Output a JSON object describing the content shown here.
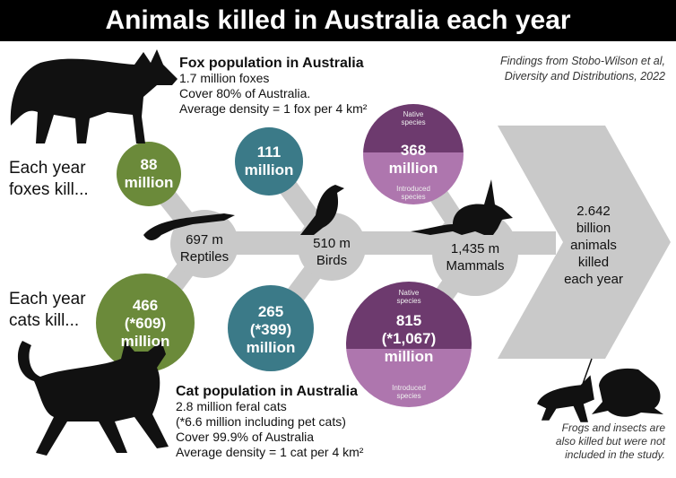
{
  "title": "Animals killed in Australia each year",
  "source": [
    "Findings from Stobo-Wilson et al,",
    "Diversity and Distributions, 2022"
  ],
  "fox": {
    "heading": "Fox population in Australia",
    "lines": [
      "1.7 million foxes",
      "Cover 80% of Australia.",
      "Average density = 1 fox per 4 km²"
    ],
    "kill_label": [
      "Each year",
      "foxes kill..."
    ]
  },
  "cat": {
    "heading": "Cat population in Australia",
    "lines": [
      "2.8 million feral cats",
      "(*6.6 million including pet cats)",
      "Cover 99.9% of Australia",
      "Average density = 1 cat per 4 km²"
    ],
    "kill_label": [
      "Each year",
      "cats kill..."
    ]
  },
  "groups": [
    {
      "total": "697 m",
      "name": "Reptiles",
      "fox": [
        "88",
        "million"
      ],
      "cat": [
        "466",
        "(*609)",
        "million"
      ],
      "color": "#6b8a3a"
    },
    {
      "total": "510 m",
      "name": "Birds",
      "fox": [
        "111",
        "million"
      ],
      "cat": [
        "265",
        "(*399)",
        "million"
      ],
      "color": "#3b7a88"
    },
    {
      "total": "1,435 m",
      "name": "Mammals",
      "fox": [
        "368",
        "million"
      ],
      "cat": [
        "815",
        "(*1,067)",
        "million"
      ],
      "color": "#6d3a6e",
      "color_light": "#ae76ae",
      "native": [
        "Native",
        "species"
      ],
      "introduced": [
        "Introduced",
        "species"
      ]
    }
  ],
  "total": [
    "2.642",
    "billion",
    "animals",
    "killed",
    "each year"
  ],
  "footnote": [
    "Frogs and insects are",
    "also killed but were not",
    "included in the study."
  ],
  "colors": {
    "spine": "#c9c9c9"
  }
}
